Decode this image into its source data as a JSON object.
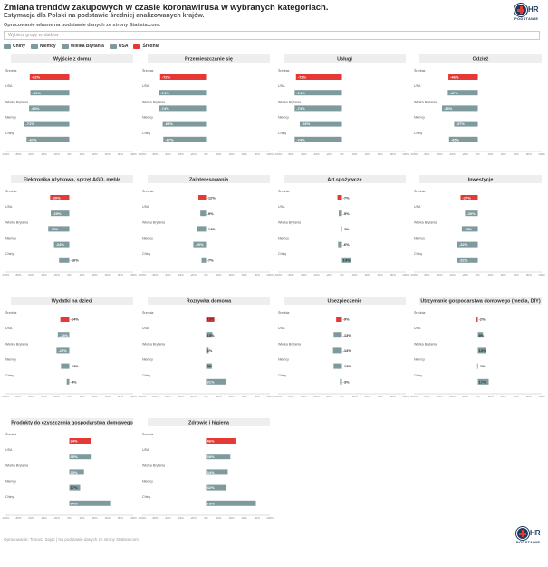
{
  "header": {
    "title": "Zmiana trendów zakupowych w czasie koronawirusa w wybranych kategoriach.",
    "subtitle": "Estymacja dla Polski na podstawie średniej analizowanych krajów.",
    "source_note": "Opracowanie własne na podstawie danych ze strony Statista.com.",
    "filter_placeholder": "Wybierz grupę wydatków"
  },
  "logo": {
    "hr_text": "HR",
    "tagline": "PODSTAWIE"
  },
  "footer": {
    "text": "Opracowanie: Tomasz Zając | Na podstawie danych ze strony Statista.com"
  },
  "colors": {
    "avg": "#e53935",
    "country": "#7f9a9c",
    "header_bg": "#eeeeee"
  },
  "legend": [
    {
      "label": "Chiny",
      "color": "#7f9a9c"
    },
    {
      "label": "Niemcy",
      "color": "#7f9a9c"
    },
    {
      "label": "Wielka Brytania",
      "color": "#7f9a9c"
    },
    {
      "label": "USA",
      "color": "#7f9a9c"
    },
    {
      "label": "Średnia",
      "color": "#e53935"
    }
  ],
  "chart_data": {
    "type": "bar",
    "orientation": "horizontal",
    "categories": [
      "Średnia",
      "USA",
      "Wielka Brytania",
      "Niemcy",
      "Chiny"
    ],
    "panels": [
      {
        "title": "Wyjście z domu",
        "values": [
          -62,
          -61,
          -63,
          -71,
          -67
        ],
        "labels": [
          "-62%",
          "-61%",
          "-63%",
          "-71%",
          "-67%"
        ],
        "ticks": [
          "-100%",
          "-80%",
          "-60%",
          "-40%",
          "-20%",
          "0%",
          "20%",
          "40%",
          "60%",
          "80%",
          "100%"
        ]
      },
      {
        "title": "Przemieszczanie się",
        "values": [
          -72,
          -74,
          -74,
          -68,
          -67
        ],
        "labels": [
          "-72%",
          "-74%",
          "-74%",
          "-68%",
          "-67%"
        ],
        "ticks": [
          "-100%",
          "-80%",
          "-60%",
          "-40%",
          "-20%",
          "0%",
          "20%",
          "40%",
          "60%",
          "80%",
          "100%"
        ]
      },
      {
        "title": "Usługi",
        "values": [
          -72,
          -74,
          -74,
          -66,
          -74
        ],
        "labels": [
          "-72%",
          "-74%",
          "-74%",
          "-66%",
          "-74%"
        ],
        "ticks": [
          "-100%",
          "-80%",
          "-60%",
          "-40%",
          "-20%",
          "0%",
          "20%",
          "40%",
          "60%",
          "80%",
          "100%"
        ]
      },
      {
        "title": "Odzież",
        "values": [
          -46,
          -47,
          -56,
          -37,
          -45
        ],
        "labels": [
          "-46%",
          "-47%",
          "-56%",
          "-37%",
          "-45%"
        ],
        "ticks": [
          "-100%",
          "-80%",
          "-60%",
          "-40%",
          "-20%",
          "0%",
          "20%",
          "40%",
          "60%",
          "80%",
          "100%"
        ]
      },
      {
        "title": "Elektronika użytkowa, sprzęt AGD, meble",
        "values": [
          -30,
          -29,
          -33,
          -24,
          -16
        ],
        "labels": [
          "-30%",
          "-29%",
          "-33%",
          "-24%",
          "-16%"
        ],
        "ticks": [
          "-100%",
          "-80%",
          "-60%",
          "-40%",
          "-20%",
          "0%",
          "20%",
          "40%",
          "60%",
          "80%",
          "100%"
        ]
      },
      {
        "title": "Zainteresowania",
        "values": [
          -12,
          -9,
          -14,
          -20,
          -7
        ],
        "labels": [
          "-12%",
          "-9%",
          "-14%",
          "-20%",
          "-7%"
        ],
        "ticks": [
          "-100%",
          "-80%",
          "-60%",
          "-40%",
          "-20%",
          "0%",
          "20%",
          "40%",
          "60%",
          "80%",
          "100%"
        ]
      },
      {
        "title": "Art.spożywcze",
        "values": [
          -7,
          -5,
          -2,
          -6,
          14
        ],
        "labels": [
          "-7%",
          "-5%",
          "-2%",
          "-6%",
          "14%"
        ],
        "ticks": [
          "-100%",
          "-80%",
          "-60%",
          "-40%",
          "-20%",
          "0%",
          "20%",
          "40%",
          "60%",
          "80%",
          "100%"
        ]
      },
      {
        "title": "Inwestycje",
        "values": [
          -27,
          -20,
          -25,
          -32,
          -32
        ],
        "labels": [
          "-27%",
          "-20%",
          "-25%",
          "-32%",
          "-32%"
        ],
        "ticks": [
          "-100%",
          "-80%",
          "-60%",
          "-40%",
          "-20%",
          "0%",
          "20%",
          "40%",
          "60%",
          "80%",
          "100%"
        ]
      },
      {
        "title": "Wydatki na dzieci",
        "values": [
          -14,
          -18,
          -20,
          -13,
          -4
        ],
        "labels": [
          "-14%",
          "-18%",
          "-20%",
          "-13%",
          "-4%"
        ],
        "ticks": [
          "-100%",
          "-80%",
          "-60%",
          "-40%",
          "-20%",
          "0%",
          "20%",
          "40%",
          "60%",
          "80%",
          "100%"
        ]
      },
      {
        "title": "Rozrywka domowa",
        "values": [
          13,
          10,
          4,
          9,
          31
        ],
        "labels": [
          "13%",
          "10%",
          "4%",
          "9%",
          "31%"
        ],
        "ticks": [
          "-100%",
          "-80%",
          "-60%",
          "-40%",
          "-20%",
          "0%",
          "20%",
          "40%",
          "60%",
          "80%",
          "100%"
        ]
      },
      {
        "title": "Ubezpieczenie",
        "values": [
          -9,
          -13,
          -14,
          -13,
          -3
        ],
        "labels": [
          "-9%",
          "-13%",
          "-14%",
          "-13%",
          "-3%"
        ],
        "ticks": [
          "-100%",
          "-80%",
          "-60%",
          "-40%",
          "-20%",
          "0%",
          "20%",
          "40%",
          "60%",
          "80%",
          "100%"
        ]
      },
      {
        "title": "Utrzymanie gospodarstwa domowego (media, DIY)",
        "values": [
          -2,
          8,
          13,
          -1,
          17
        ],
        "labels": [
          "-2%",
          "8%",
          "13%",
          "-1%",
          "17%"
        ],
        "ticks": [
          "-100%",
          "-80%",
          "-60%",
          "-40%",
          "-20%",
          "0%",
          "20%",
          "40%",
          "60%",
          "80%",
          "100%"
        ]
      },
      {
        "title": "Produkty do czyszczenia gospodarstwa domowego",
        "values": [
          34,
          35,
          23,
          17,
          64
        ],
        "labels": [
          "34%",
          "35%",
          "23%",
          "17%",
          "64%"
        ],
        "ticks": [
          "-100%",
          "-80%",
          "-60%",
          "-40%",
          "-20%",
          "0%",
          "20%",
          "40%",
          "60%",
          "80%",
          "100%"
        ]
      },
      {
        "title": "Zdrowie i higiena",
        "values": [
          46,
          38,
          34,
          32,
          78
        ],
        "labels": [
          "46%",
          "38%",
          "34%",
          "32%",
          "78%"
        ],
        "ticks": [
          "-100%",
          "-80%",
          "-60%",
          "-40%",
          "-20%",
          "0%",
          "20%",
          "40%",
          "60%",
          "80%",
          "100%"
        ]
      }
    ],
    "xlim": [
      -100,
      100
    ]
  }
}
